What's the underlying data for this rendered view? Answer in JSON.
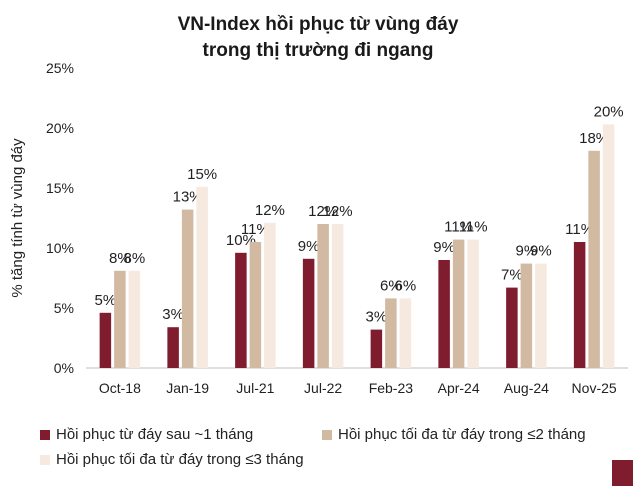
{
  "chart_data": {
    "type": "bar",
    "title_line1": "VN-Index hồi phục từ vùng đáy",
    "title_line2": "trong thị trường đi ngang",
    "ylabel": "% tăng tính từ vùng đáy",
    "xlabel": "",
    "ylim": [
      0,
      25
    ],
    "yticks": [
      "0%",
      "5%",
      "10%",
      "15%",
      "20%",
      "25%"
    ],
    "categories": [
      "Oct-18",
      "Jan-19",
      "Jul-21",
      "Jul-22",
      "Feb-23",
      "Apr-24",
      "Aug-24",
      "Nov-25"
    ],
    "series": [
      {
        "name": "Hồi phục từ đáy sau ~1 tháng",
        "color": "#7f1d2e",
        "values": [
          4.6,
          3.4,
          9.6,
          9.1,
          3.2,
          9.0,
          6.7,
          10.5
        ],
        "labels": [
          "5%",
          "3%",
          "10%",
          "9%",
          "3%",
          "9%",
          "7%",
          "11%"
        ]
      },
      {
        "name": "Hồi phục tối đa từ đáy trong ≤2 tháng",
        "color": "#d2b9a1",
        "values": [
          8.1,
          13.2,
          10.5,
          12.0,
          5.8,
          10.7,
          8.7,
          18.1
        ],
        "labels": [
          "8%",
          "13%",
          "11%",
          "12%",
          "6%",
          "11%",
          "9%",
          "18%"
        ]
      },
      {
        "name": "Hồi phục tối đa từ đáy trong ≤3 tháng",
        "color": "#f5e9e0",
        "values": [
          8.1,
          15.1,
          12.1,
          12.0,
          5.8,
          10.7,
          8.7,
          20.3
        ],
        "labels": [
          "8%",
          "15%",
          "12%",
          "12%",
          "6%",
          "11%",
          "9%",
          "20%"
        ]
      }
    ],
    "grid": false,
    "legend_position": "bottom"
  },
  "decor": {
    "corner_color": "#7f1d2e"
  }
}
